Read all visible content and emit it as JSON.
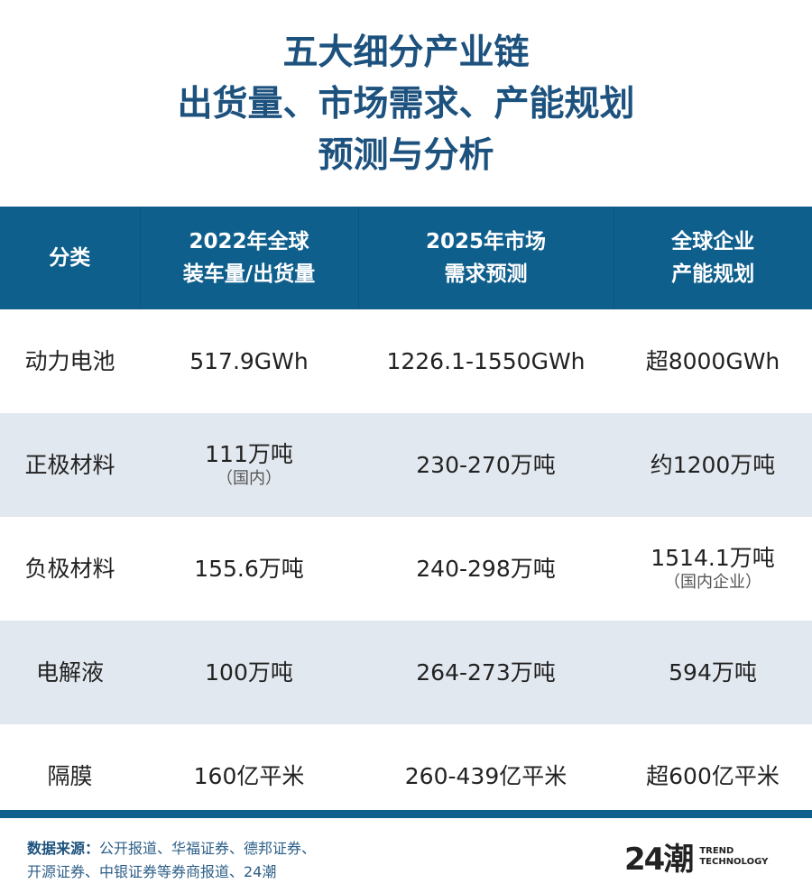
{
  "title": [
    "五大细分产业链",
    "出货量、市场需求、产能规划",
    "预测与分析"
  ],
  "headers": [
    [
      "分类"
    ],
    [
      "2022年全球",
      "装车量/出货量"
    ],
    [
      "2025年市场",
      "需求预测"
    ],
    [
      "全球企业",
      "产能规划"
    ]
  ],
  "rows": [
    {
      "category": "动力电池",
      "c1": "517.9GWh",
      "c1_note": "",
      "c2": "1226.1-1550GWh",
      "c3": "超8000GWh",
      "c3_note": ""
    },
    {
      "category": "正极材料",
      "c1": "111万吨",
      "c1_note": "（国内）",
      "c2": "230-270万吨",
      "c3": "约1200万吨",
      "c3_note": ""
    },
    {
      "category": "负极材料",
      "c1": "155.6万吨",
      "c1_note": "",
      "c2": "240-298万吨",
      "c3": "1514.1万吨",
      "c3_note": "（国内企业）"
    },
    {
      "category": "电解液",
      "c1": "100万吨",
      "c1_note": "",
      "c2": "264-273万吨",
      "c3": "594万吨",
      "c3_note": ""
    },
    {
      "category": "隔膜",
      "c1": "160亿平米",
      "c1_note": "",
      "c2": "260-439亿平米",
      "c3": "超600亿平米",
      "c3_note": ""
    }
  ],
  "source": {
    "label": "数据来源：",
    "line1": "公开报道、华福证券、德邦证券、",
    "line2": "开源证券、中银证券等券商报道、24潮"
  },
  "logo": {
    "mark": "24潮",
    "line1": "TREND",
    "line2": "TECHNOLOGY"
  },
  "colors": {
    "header": "#0f5f8d",
    "title": "#1d527e",
    "alt_row": "#e2e8ef"
  }
}
